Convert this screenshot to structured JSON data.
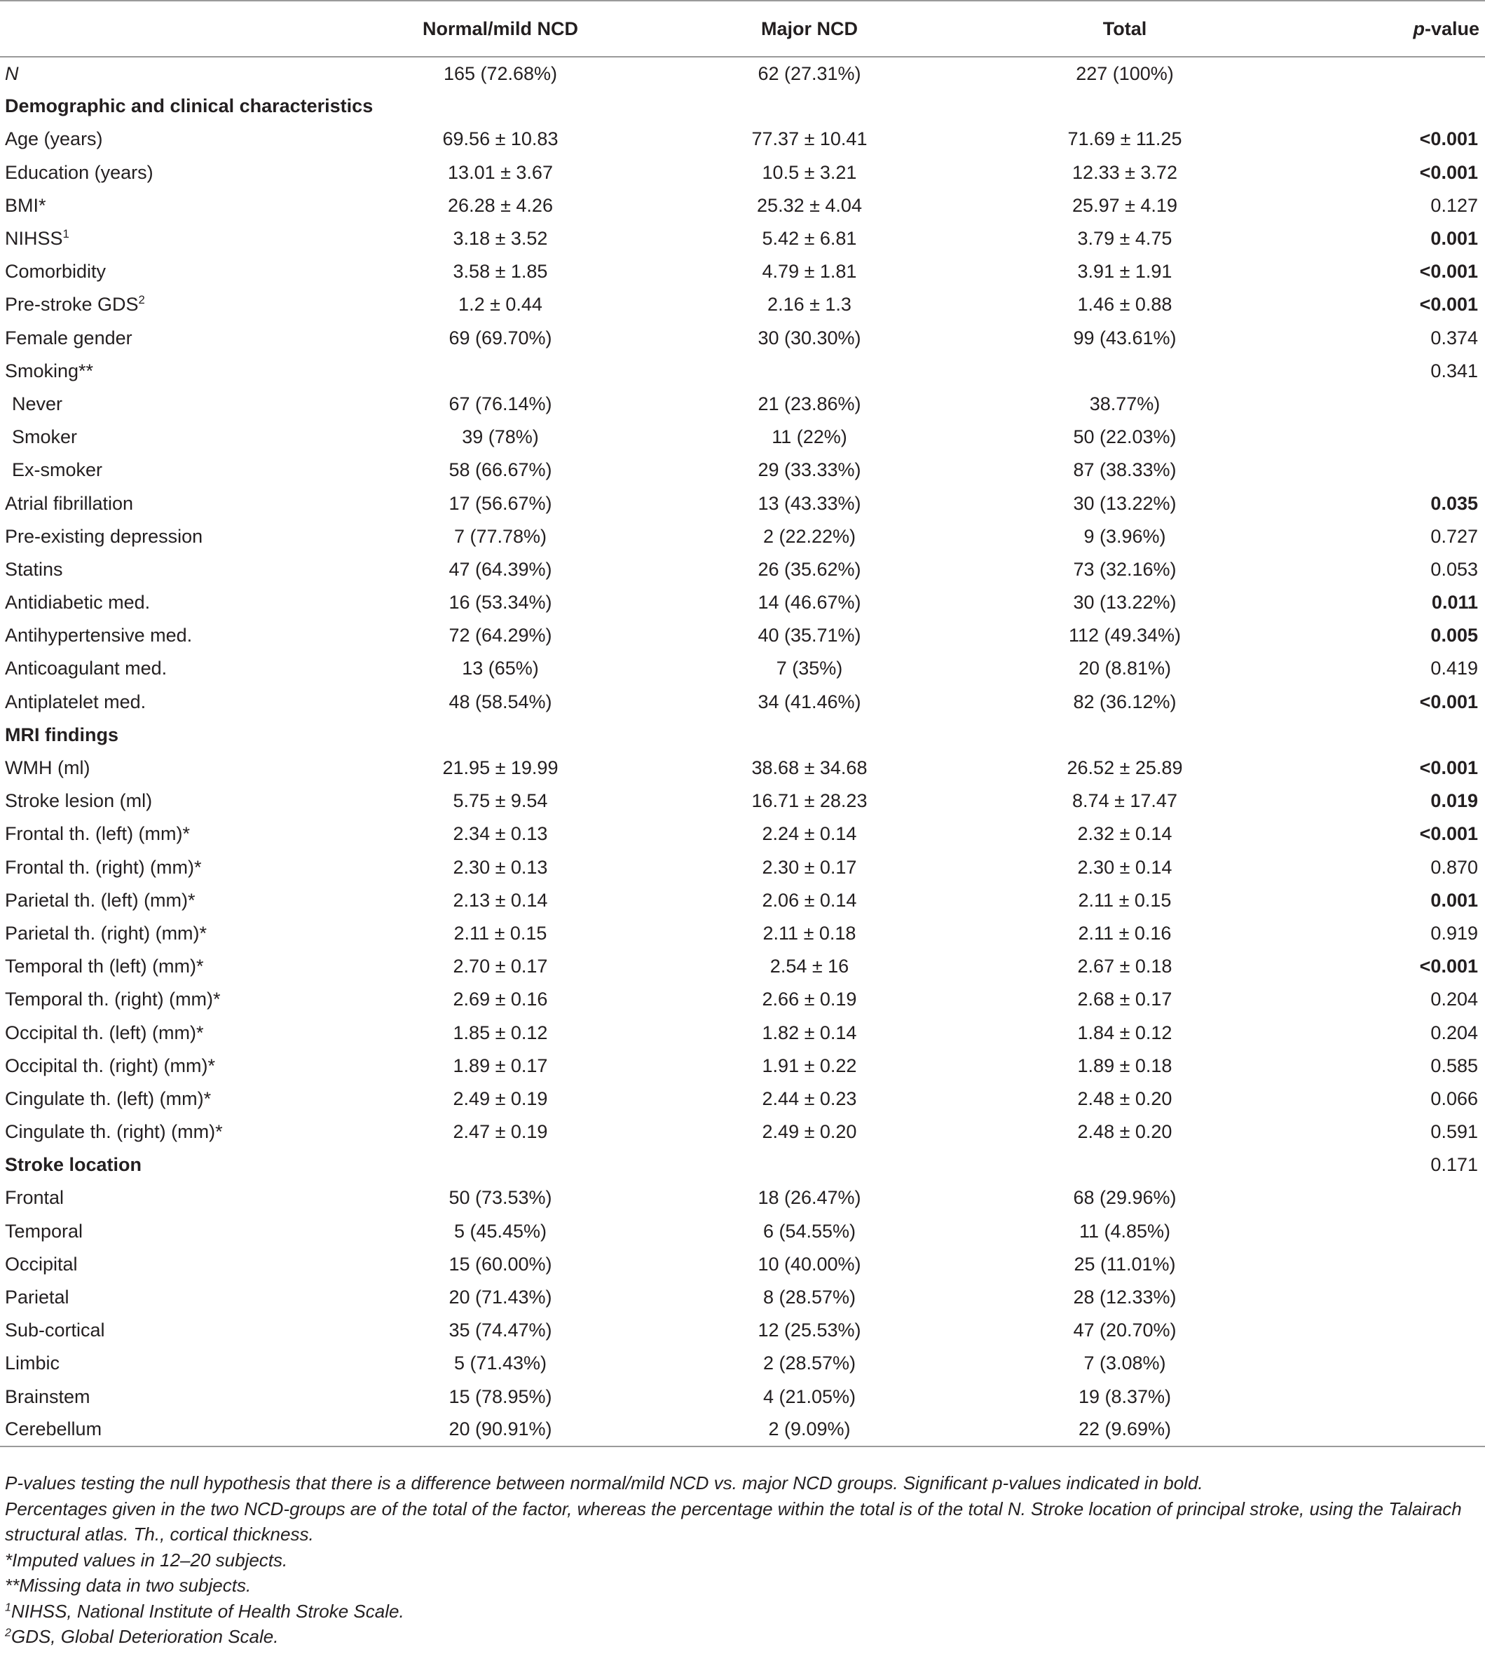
{
  "table": {
    "headers": [
      "",
      "Normal/mild NCD",
      "Major NCD",
      "Total",
      "-value"
    ],
    "p_header_italic_prefix": "p",
    "rows": [
      {
        "label": "N",
        "cells": [
          "165 (72.68%)",
          "62 (27.31%)",
          "227 (100%)",
          ""
        ],
        "label_style": "italic"
      },
      {
        "label": "Demographic and clinical characteristics",
        "cells": [
          "",
          "",
          "",
          ""
        ],
        "section": true
      },
      {
        "label": "Age (years)",
        "cells": [
          "69.56 ± 10.83",
          "77.37 ± 10.41",
          "71.69 ± 11.25",
          "<0.001"
        ],
        "bold_p": true
      },
      {
        "label": "Education (years)",
        "cells": [
          "13.01 ± 3.67",
          "10.5 ± 3.21",
          "12.33 ± 3.72",
          "<0.001"
        ],
        "bold_p": true
      },
      {
        "label": "BMI*",
        "cells": [
          "26.28 ± 4.26",
          "25.32 ± 4.04",
          "25.97 ± 4.19",
          "0.127"
        ]
      },
      {
        "label": "NIHSS",
        "sup": "1",
        "cells": [
          "3.18 ± 3.52",
          "5.42 ± 6.81",
          "3.79 ± 4.75",
          "0.001"
        ],
        "bold_p": true
      },
      {
        "label": "Comorbidity",
        "cells": [
          "3.58 ± 1.85",
          "4.79 ± 1.81",
          "3.91 ± 1.91",
          "<0.001"
        ],
        "bold_p": true
      },
      {
        "label": "Pre-stroke GDS",
        "sup": "2",
        "cells": [
          "1.2 ± 0.44",
          "2.16 ± 1.3",
          "1.46 ± 0.88",
          "<0.001"
        ],
        "bold_p": true
      },
      {
        "label": "Female gender",
        "cells": [
          "69 (69.70%)",
          "30 (30.30%)",
          "99 (43.61%)",
          "0.374"
        ]
      },
      {
        "label": "Smoking**",
        "cells": [
          "",
          "",
          "",
          "0.341"
        ]
      },
      {
        "label": "Never",
        "cells": [
          "67 (76.14%)",
          "21 (23.86%)",
          "38.77%)",
          ""
        ],
        "indent": true
      },
      {
        "label": "Smoker",
        "cells": [
          "39 (78%)",
          "11 (22%)",
          "50 (22.03%)",
          ""
        ],
        "indent": true
      },
      {
        "label": "Ex-smoker",
        "cells": [
          "58 (66.67%)",
          "29 (33.33%)",
          "87 (38.33%)",
          ""
        ],
        "indent": true
      },
      {
        "label": "Atrial fibrillation",
        "cells": [
          "17 (56.67%)",
          "13 (43.33%)",
          "30 (13.22%)",
          "0.035"
        ],
        "bold_p": true
      },
      {
        "label": "Pre-existing depression",
        "cells": [
          "7 (77.78%)",
          "2 (22.22%)",
          "9 (3.96%)",
          "0.727"
        ]
      },
      {
        "label": "Statins",
        "cells": [
          "47 (64.39%)",
          "26 (35.62%)",
          "73 (32.16%)",
          "0.053"
        ]
      },
      {
        "label": "Antidiabetic med.",
        "cells": [
          "16 (53.34%)",
          "14 (46.67%)",
          "30 (13.22%)",
          "0.011"
        ],
        "bold_p": true
      },
      {
        "label": "Antihypertensive med.",
        "cells": [
          "72 (64.29%)",
          "40 (35.71%)",
          "112 (49.34%)",
          "0.005"
        ],
        "bold_p": true
      },
      {
        "label": "Anticoagulant med.",
        "cells": [
          "13 (65%)",
          "7 (35%)",
          "20 (8.81%)",
          "0.419"
        ]
      },
      {
        "label": "Antiplatelet med.",
        "cells": [
          "48 (58.54%)",
          "34 (41.46%)",
          "82 (36.12%)",
          "<0.001"
        ],
        "bold_p": true
      },
      {
        "label": "MRI findings",
        "cells": [
          "",
          "",
          "",
          ""
        ],
        "section": true
      },
      {
        "label": "WMH (ml)",
        "cells": [
          "21.95 ± 19.99",
          "38.68 ± 34.68",
          "26.52 ± 25.89",
          "<0.001"
        ],
        "bold_p": true
      },
      {
        "label": "Stroke lesion (ml)",
        "cells": [
          "5.75 ± 9.54",
          "16.71 ± 28.23",
          "8.74 ± 17.47",
          "0.019"
        ],
        "bold_p": true
      },
      {
        "label": "Frontal th. (left) (mm)*",
        "cells": [
          "2.34 ± 0.13",
          "2.24 ± 0.14",
          "2.32 ± 0.14",
          "<0.001"
        ],
        "bold_p": true
      },
      {
        "label": "Frontal th. (right) (mm)*",
        "cells": [
          "2.30 ± 0.13",
          "2.30 ± 0.17",
          "2.30 ± 0.14",
          "0.870"
        ]
      },
      {
        "label": "Parietal th. (left) (mm)*",
        "cells": [
          "2.13 ± 0.14",
          "2.06 ± 0.14",
          "2.11 ± 0.15",
          "0.001"
        ],
        "bold_p": true
      },
      {
        "label": "Parietal th. (right) (mm)*",
        "cells": [
          "2.11 ± 0.15",
          "2.11 ± 0.18",
          "2.11 ± 0.16",
          "0.919"
        ]
      },
      {
        "label": "Temporal th (left) (mm)*",
        "cells": [
          "2.70 ± 0.17",
          "2.54 ± 16",
          "2.67 ± 0.18",
          "<0.001"
        ],
        "bold_p": true
      },
      {
        "label": "Temporal th. (right) (mm)*",
        "cells": [
          "2.69 ± 0.16",
          "2.66 ± 0.19",
          "2.68 ± 0.17",
          "0.204"
        ]
      },
      {
        "label": "Occipital th. (left) (mm)*",
        "cells": [
          "1.85 ± 0.12",
          "1.82 ± 0.14",
          "1.84 ± 0.12",
          "0.204"
        ]
      },
      {
        "label": "Occipital th. (right) (mm)*",
        "cells": [
          "1.89 ± 0.17",
          "1.91 ± 0.22",
          "1.89 ± 0.18",
          "0.585"
        ]
      },
      {
        "label": "Cingulate th. (left) (mm)*",
        "cells": [
          "2.49 ± 0.19",
          "2.44 ± 0.23",
          "2.48 ± 0.20",
          "0.066"
        ]
      },
      {
        "label": "Cingulate th. (right) (mm)*",
        "cells": [
          "2.47 ± 0.19",
          "2.49 ± 0.20",
          "2.48 ± 0.20",
          "0.591"
        ]
      },
      {
        "label": "Stroke location",
        "cells": [
          "",
          "",
          "",
          "0.171"
        ],
        "section": true
      },
      {
        "label": "Frontal",
        "cells": [
          "50 (73.53%)",
          "18 (26.47%)",
          "68 (29.96%)",
          ""
        ]
      },
      {
        "label": "Temporal",
        "cells": [
          "5 (45.45%)",
          "6 (54.55%)",
          "11 (4.85%)",
          ""
        ]
      },
      {
        "label": "Occipital",
        "cells": [
          "15 (60.00%)",
          "10 (40.00%)",
          "25 (11.01%)",
          ""
        ]
      },
      {
        "label": "Parietal",
        "cells": [
          "20 (71.43%)",
          "8 (28.57%)",
          "28 (12.33%)",
          ""
        ]
      },
      {
        "label": "Sub-cortical",
        "cells": [
          "35 (74.47%)",
          "12 (25.53%)",
          "47 (20.70%)",
          ""
        ]
      },
      {
        "label": "Limbic",
        "cells": [
          "5 (71.43%)",
          "2 (28.57%)",
          "7 (3.08%)",
          ""
        ]
      },
      {
        "label": "Brainstem",
        "cells": [
          "15 (78.95%)",
          "4 (21.05%)",
          "19 (8.37%)",
          ""
        ]
      },
      {
        "label": "Cerebellum",
        "cells": [
          "20 (90.91%)",
          "2 (9.09%)",
          "22 (9.69%)",
          ""
        ]
      }
    ]
  },
  "notes": [
    {
      "text": "P-values testing the null hypothesis that there is a difference between normal/mild NCD vs. major NCD groups. Significant p-values indicated in bold."
    },
    {
      "text": "Percentages given in the two NCD-groups are of the total of the factor, whereas the percentage within the total is of the total N. Stroke location of principal stroke, using the Talairach structural atlas. Th., cortical thickness."
    },
    {
      "text": "*Imputed values in 12–20 subjects."
    },
    {
      "text": "**Missing data in two subjects."
    },
    {
      "sup": "1",
      "text": "NIHSS, National Institute of Health Stroke Scale."
    },
    {
      "sup": "2",
      "text": "GDS, Global Deterioration Scale."
    }
  ]
}
